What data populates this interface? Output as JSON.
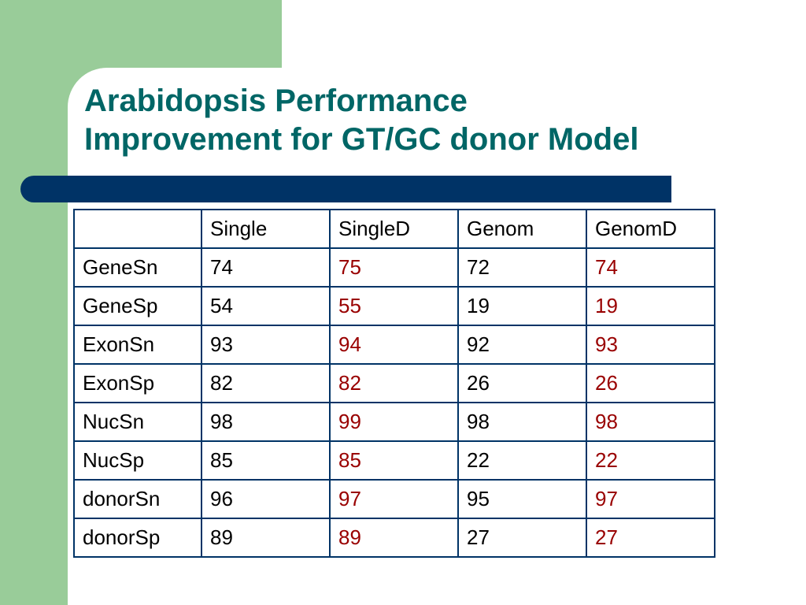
{
  "slide": {
    "title_line1": "Arabidopsis Performance",
    "title_line2": "Improvement for GT/GC donor Model"
  },
  "colors": {
    "background_green": "#99cc99",
    "title": "#006666",
    "bar": "#003366",
    "highlight_value": "#990000"
  },
  "table": {
    "headers": [
      "",
      "Single",
      "SingleD",
      "Genom",
      "GenomD"
    ],
    "rows": [
      {
        "label": "GeneSn",
        "values": [
          "74",
          "75",
          "72",
          "74"
        ]
      },
      {
        "label": "GeneSp",
        "values": [
          "54",
          "55",
          "19",
          "19"
        ]
      },
      {
        "label": "ExonSn",
        "values": [
          "93",
          "94",
          "92",
          "93"
        ]
      },
      {
        "label": "ExonSp",
        "values": [
          "82",
          "82",
          "26",
          "26"
        ]
      },
      {
        "label": "NucSn",
        "values": [
          "98",
          "99",
          "98",
          "98"
        ]
      },
      {
        "label": "NucSp",
        "values": [
          "85",
          "85",
          "22",
          "22"
        ]
      },
      {
        "label": "donorSn",
        "values": [
          "96",
          "97",
          "95",
          "97"
        ]
      },
      {
        "label": "donorSp",
        "values": [
          "89",
          "89",
          "27",
          "27"
        ]
      }
    ]
  }
}
